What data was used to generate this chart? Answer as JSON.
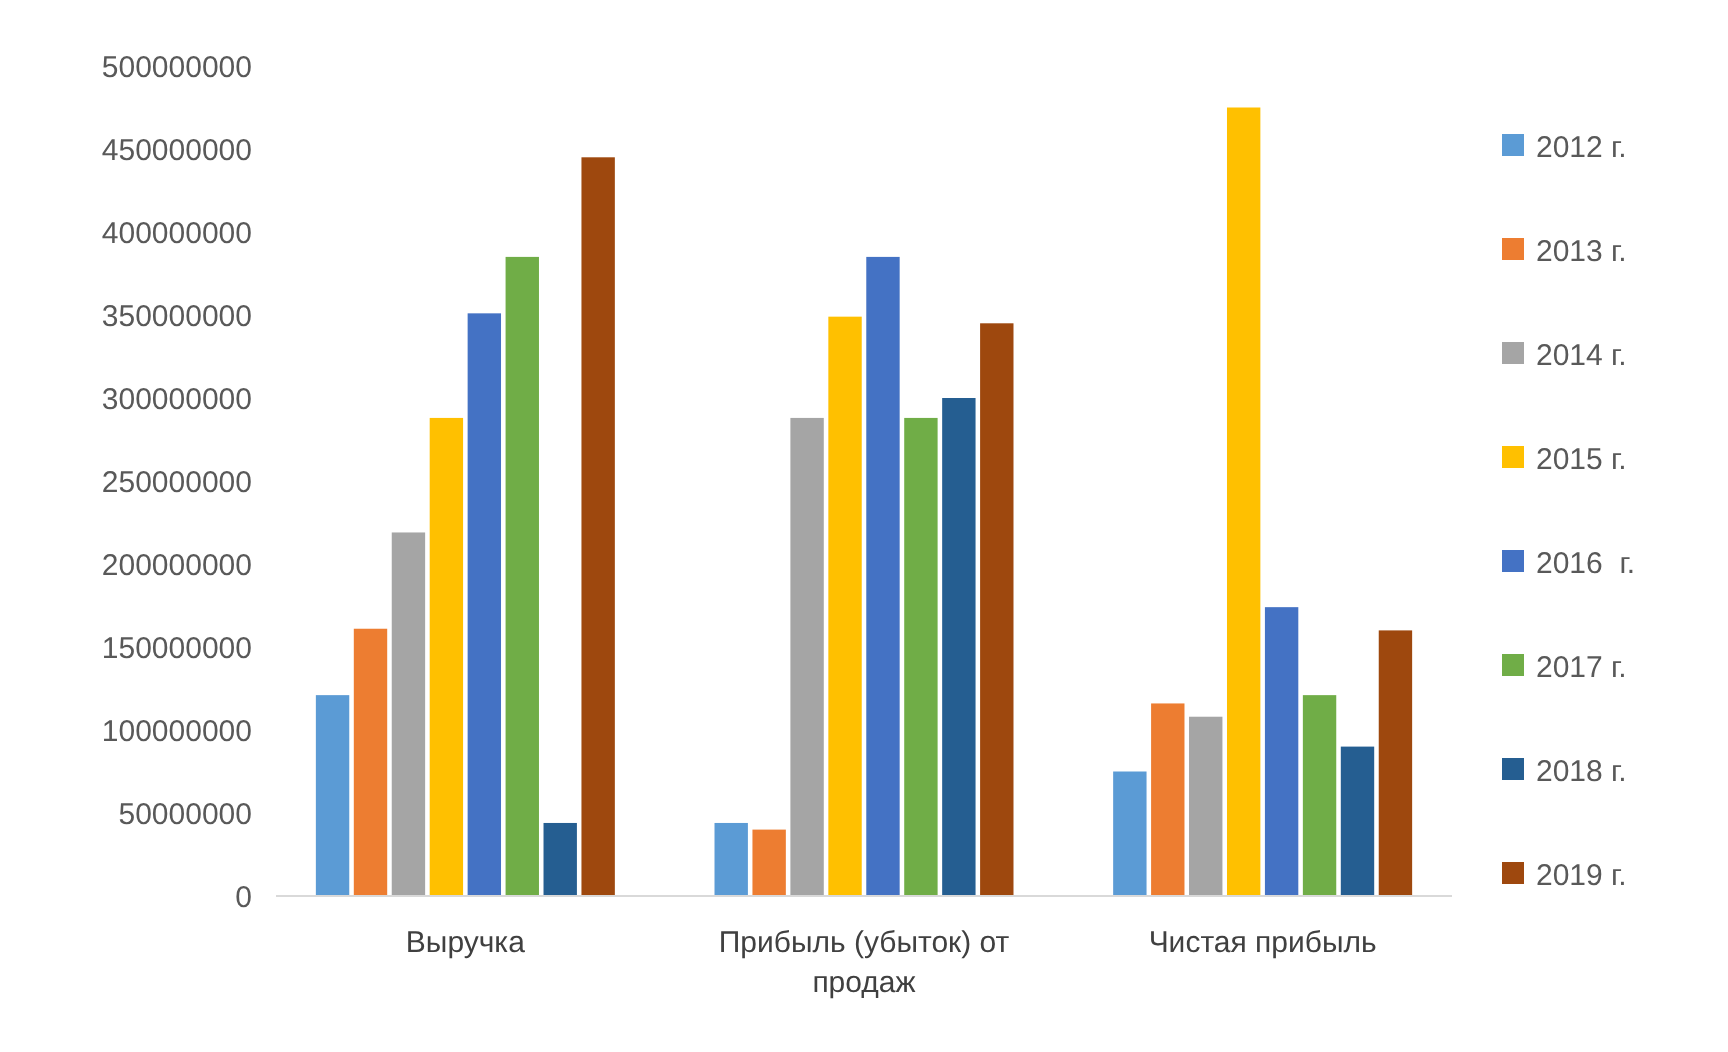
{
  "chart_data": {
    "type": "bar",
    "categories": [
      "Выручка",
      "Прибыль (убыток) от продаж",
      "Чистая прибыль"
    ],
    "ylim": [
      0,
      500000000
    ],
    "yticks": [
      0,
      50000000,
      100000000,
      150000000,
      200000000,
      250000000,
      300000000,
      350000000,
      400000000,
      450000000,
      500000000
    ],
    "grid": false,
    "legend": "right",
    "series": [
      {
        "name": "2012 г.",
        "color": "#5b9bd5",
        "values": [
          121000000,
          44000000,
          75000000
        ]
      },
      {
        "name": "2013 г.",
        "color": "#ed7d31",
        "values": [
          161000000,
          40000000,
          116000000
        ]
      },
      {
        "name": "2014 г.",
        "color": "#a5a5a5",
        "values": [
          219000000,
          288000000,
          108000000
        ]
      },
      {
        "name": "2015 г.",
        "color": "#ffc000",
        "values": [
          288000000,
          349000000,
          475000000
        ]
      },
      {
        "name": "2016  г.",
        "color": "#4472c4",
        "values": [
          351000000,
          385000000,
          174000000
        ]
      },
      {
        "name": "2017 г.",
        "color": "#70ad47",
        "values": [
          385000000,
          288000000,
          121000000
        ]
      },
      {
        "name": "2018 г.",
        "color": "#255e91",
        "values": [
          44000000,
          300000000,
          90000000
        ]
      },
      {
        "name": "2019 г.",
        "color": "#9e480e",
        "values": [
          445000000,
          345000000,
          160000000
        ]
      }
    ]
  }
}
